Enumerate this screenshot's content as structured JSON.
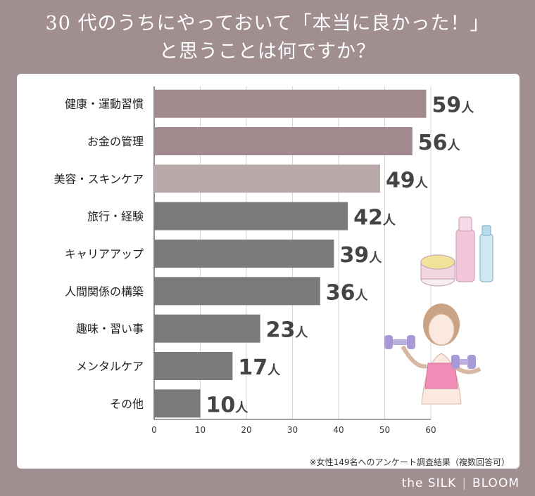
{
  "title_line1": "30 代のうちにやっておいて「本当に良かった！」",
  "title_line2": "と思うことは何ですか？",
  "note": "※女性149名へのアンケート調査結果（複数回答可）",
  "brand": {
    "left": "the SILK",
    "right": "BLOOM"
  },
  "colors": {
    "top": "#a08a8d",
    "mid": "#b9a8aa",
    "rest": "#7a7a7a"
  },
  "chart_data": {
    "type": "bar",
    "orientation": "horizontal",
    "unit": "人",
    "categories": [
      "健康・運動習慣",
      "お金の管理",
      "美容・スキンケア",
      "旅行・経験",
      "キャリアアップ",
      "人間関係の構築",
      "趣味・習い事",
      "メンタルケア",
      "その他"
    ],
    "values": [
      59,
      56,
      49,
      42,
      39,
      36,
      23,
      17,
      10
    ],
    "xlim": [
      0,
      60
    ],
    "xticks": [
      0,
      10,
      20,
      30,
      40,
      50,
      60
    ],
    "grid": true
  }
}
